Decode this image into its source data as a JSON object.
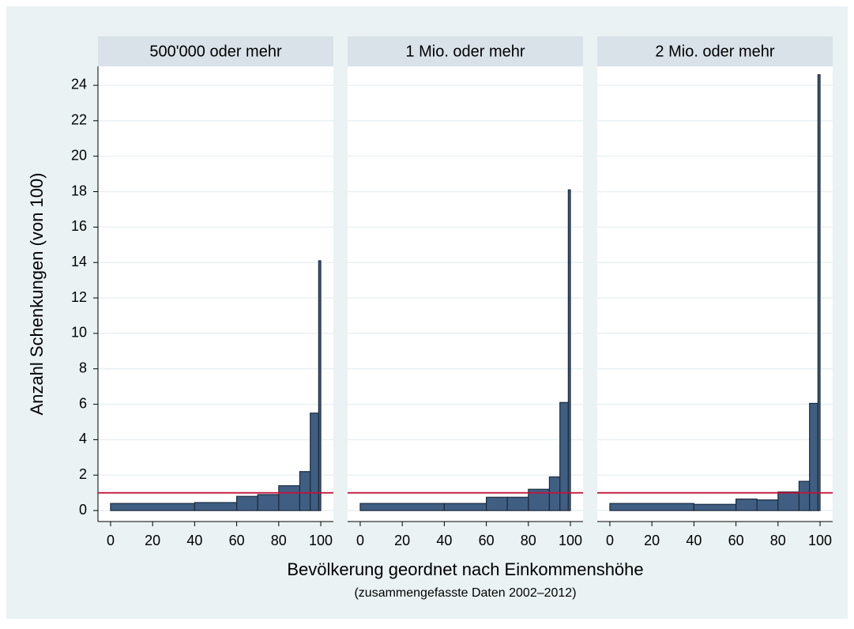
{
  "chart_data": {
    "type": "histogram",
    "ylabel": "Anzahl Schenkungen (von 100)",
    "xlabel": "Bevölkerung geordnet nach Einkommenshöhe",
    "subtitle": "(zusammengefasste Daten 2002–2012)",
    "bins": [
      0,
      40,
      60,
      70,
      80,
      90,
      95,
      99,
      100
    ],
    "color": "#3f5e82",
    "reference_line": {
      "value": 1,
      "color": "#c0143c"
    },
    "xlim": [
      -6,
      106
    ],
    "xticks": [
      0,
      20,
      40,
      60,
      80,
      100
    ],
    "ylim": [
      -0.62,
      25.07
    ],
    "yticks": [
      0,
      2,
      4,
      6,
      8,
      10,
      12,
      14,
      16,
      18,
      20,
      22,
      24
    ],
    "grid": true,
    "panels": [
      {
        "title": "500'000 oder mehr",
        "values": [
          0.4,
          0.45,
          0.8,
          0.9,
          1.4,
          2.2,
          5.5,
          14.1
        ]
      },
      {
        "title": "1 Mio. oder mehr",
        "values": [
          0.4,
          0.4,
          0.75,
          0.75,
          1.2,
          1.9,
          6.1,
          18.1
        ]
      },
      {
        "title": "2 Mio. oder mehr",
        "values": [
          0.4,
          0.35,
          0.65,
          0.6,
          1.05,
          1.65,
          6.05,
          24.6
        ]
      }
    ]
  }
}
